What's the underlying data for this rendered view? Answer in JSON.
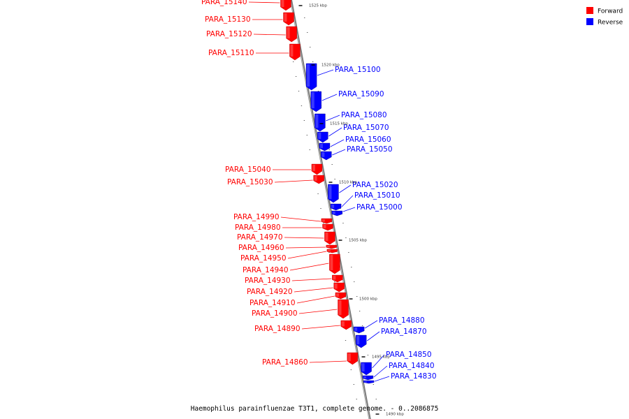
{
  "colors": {
    "forward": "#ff0000",
    "reverse": "#0000ff",
    "axis": "#888888"
  },
  "legend": [
    {
      "label": "Forward",
      "color": "#ff0000"
    },
    {
      "label": "Reverse",
      "color": "#0000ff"
    }
  ],
  "caption": "Haemophilus parainfluenzae T3T1, complete genome. - 0..2086875",
  "ticks": [
    "1525 kbp",
    "1520 kbp",
    "1515 kbp",
    "1510 kbp",
    "1505 kbp",
    "1500 kbp",
    "1495 kbp",
    "1490 kbp"
  ],
  "genes": [
    {
      "name": "PARA_15140",
      "strand": "forward"
    },
    {
      "name": "PARA_15130",
      "strand": "forward"
    },
    {
      "name": "PARA_15120",
      "strand": "forward"
    },
    {
      "name": "PARA_15110",
      "strand": "forward"
    },
    {
      "name": "PARA_15100",
      "strand": "reverse"
    },
    {
      "name": "PARA_15090",
      "strand": "reverse"
    },
    {
      "name": "PARA_15080",
      "strand": "reverse"
    },
    {
      "name": "PARA_15070",
      "strand": "reverse"
    },
    {
      "name": "PARA_15060",
      "strand": "reverse"
    },
    {
      "name": "PARA_15050",
      "strand": "reverse"
    },
    {
      "name": "PARA_15040",
      "strand": "forward"
    },
    {
      "name": "PARA_15030",
      "strand": "forward"
    },
    {
      "name": "PARA_15020",
      "strand": "reverse"
    },
    {
      "name": "PARA_15010",
      "strand": "reverse"
    },
    {
      "name": "PARA_15000",
      "strand": "reverse"
    },
    {
      "name": "PARA_14990",
      "strand": "forward"
    },
    {
      "name": "PARA_14980",
      "strand": "forward"
    },
    {
      "name": "PARA_14970",
      "strand": "forward"
    },
    {
      "name": "PARA_14960",
      "strand": "forward"
    },
    {
      "name": "PARA_14950",
      "strand": "forward"
    },
    {
      "name": "PARA_14940",
      "strand": "forward"
    },
    {
      "name": "PARA_14930",
      "strand": "forward"
    },
    {
      "name": "PARA_14920",
      "strand": "forward"
    },
    {
      "name": "PARA_14910",
      "strand": "forward"
    },
    {
      "name": "PARA_14900",
      "strand": "forward"
    },
    {
      "name": "PARA_14890",
      "strand": "forward"
    },
    {
      "name": "PARA_14880",
      "strand": "reverse"
    },
    {
      "name": "PARA_14870",
      "strand": "reverse"
    },
    {
      "name": "PARA_14860",
      "strand": "forward"
    },
    {
      "name": "PARA_14850",
      "strand": "reverse"
    },
    {
      "name": "PARA_14840",
      "strand": "reverse"
    },
    {
      "name": "PARA_14830",
      "strand": "reverse"
    }
  ]
}
